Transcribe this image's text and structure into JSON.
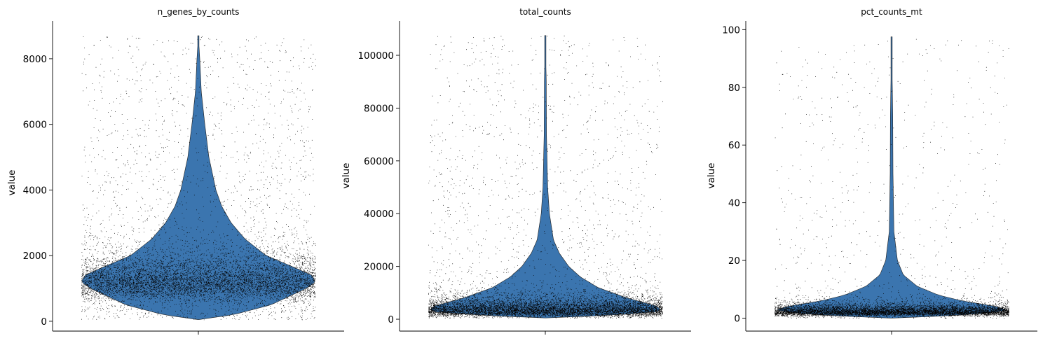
{
  "figure": {
    "description_free": true
  },
  "chart_data": [
    {
      "type": "violin",
      "title": "n_genes_by_counts",
      "xlabel": "",
      "ylabel": "value",
      "ylim": [
        -300,
        9150
      ],
      "yticks": [
        0,
        2000,
        4000,
        6000,
        8000
      ],
      "violin_color": "#3b75af",
      "violin_range": [
        50,
        8700
      ],
      "violin_profile": [
        {
          "y": 50,
          "w": 0.0
        },
        {
          "y": 200,
          "w": 0.3
        },
        {
          "y": 500,
          "w": 0.62
        },
        {
          "y": 800,
          "w": 0.8
        },
        {
          "y": 1000,
          "w": 0.92
        },
        {
          "y": 1200,
          "w": 1.0
        },
        {
          "y": 1400,
          "w": 0.97
        },
        {
          "y": 1700,
          "w": 0.78
        },
        {
          "y": 2000,
          "w": 0.58
        },
        {
          "y": 2500,
          "w": 0.4
        },
        {
          "y": 3000,
          "w": 0.28
        },
        {
          "y": 3500,
          "w": 0.2
        },
        {
          "y": 4000,
          "w": 0.15
        },
        {
          "y": 5000,
          "w": 0.09
        },
        {
          "y": 6000,
          "w": 0.055
        },
        {
          "y": 7000,
          "w": 0.025
        },
        {
          "y": 8000,
          "w": 0.012
        },
        {
          "y": 8700,
          "w": 0.0
        }
      ],
      "points": {
        "n": 9000,
        "min": 50,
        "max": 8700,
        "median": 1250,
        "spread": 0.55,
        "tail": 0.28
      }
    },
    {
      "type": "violin",
      "title": "total_counts",
      "xlabel": "",
      "ylabel": "value",
      "ylim": [
        -4500,
        113000
      ],
      "yticks": [
        0,
        20000,
        40000,
        60000,
        80000,
        100000
      ],
      "violin_color": "#3b75af",
      "violin_range": [
        500,
        107500
      ],
      "violin_profile": [
        {
          "y": 500,
          "w": 0.0
        },
        {
          "y": 1500,
          "w": 0.55
        },
        {
          "y": 3000,
          "w": 1.0
        },
        {
          "y": 5000,
          "w": 0.95
        },
        {
          "y": 8000,
          "w": 0.7
        },
        {
          "y": 12000,
          "w": 0.45
        },
        {
          "y": 16000,
          "w": 0.3
        },
        {
          "y": 20000,
          "w": 0.2
        },
        {
          "y": 25000,
          "w": 0.12
        },
        {
          "y": 30000,
          "w": 0.07
        },
        {
          "y": 40000,
          "w": 0.035
        },
        {
          "y": 50000,
          "w": 0.02
        },
        {
          "y": 70000,
          "w": 0.01
        },
        {
          "y": 90000,
          "w": 0.008
        },
        {
          "y": 107500,
          "w": 0.0
        }
      ],
      "points": {
        "n": 9000,
        "min": 500,
        "max": 107500,
        "median": 4000,
        "spread": 0.9,
        "tail": 0.22
      }
    },
    {
      "type": "violin",
      "title": "pct_counts_mt",
      "xlabel": "",
      "ylabel": "value",
      "ylim": [
        -4.5,
        103
      ],
      "yticks": [
        0,
        20,
        40,
        60,
        80,
        100
      ],
      "violin_color": "#3b75af",
      "violin_range": [
        0,
        97.5
      ],
      "violin_profile": [
        {
          "y": 0,
          "w": 0.0
        },
        {
          "y": 1,
          "w": 0.6
        },
        {
          "y": 2.5,
          "w": 1.0
        },
        {
          "y": 4,
          "w": 0.9
        },
        {
          "y": 6,
          "w": 0.6
        },
        {
          "y": 8,
          "w": 0.4
        },
        {
          "y": 11,
          "w": 0.22
        },
        {
          "y": 15,
          "w": 0.1
        },
        {
          "y": 20,
          "w": 0.05
        },
        {
          "y": 30,
          "w": 0.02
        },
        {
          "y": 50,
          "w": 0.012
        },
        {
          "y": 70,
          "w": 0.01
        },
        {
          "y": 97.5,
          "w": 0.0
        }
      ],
      "points": {
        "n": 8500,
        "min": 0,
        "max": 97,
        "median": 2.5,
        "spread": 0.8,
        "tail": 0.12
      }
    }
  ]
}
